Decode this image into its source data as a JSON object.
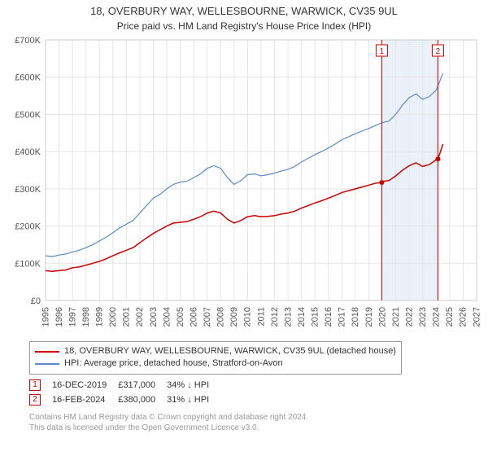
{
  "title": "18, OVERBURY WAY, WELLESBOURNE, WARWICK, CV35 9UL",
  "subtitle": "Price paid vs. HM Land Registry's House Price Index (HPI)",
  "chart": {
    "type": "line",
    "background_color": "#ffffff",
    "plot_border_color": "#cccccc",
    "grid_color": "#e5e5e5",
    "font_family": "Arial",
    "axis_label_color": "#555555",
    "x": {
      "min": 1995,
      "max": 2027,
      "ticks": [
        1995,
        1996,
        1997,
        1998,
        1999,
        2000,
        2001,
        2002,
        2003,
        2004,
        2005,
        2006,
        2007,
        2008,
        2009,
        2010,
        2011,
        2012,
        2013,
        2014,
        2015,
        2016,
        2017,
        2018,
        2019,
        2020,
        2021,
        2022,
        2023,
        2024,
        2025,
        2026,
        2027
      ],
      "tick_fontsize": 11
    },
    "y": {
      "min": 0,
      "max": 700000,
      "tick_step": 100000,
      "labels": [
        "£0",
        "£100K",
        "£200K",
        "£300K",
        "£400K",
        "£500K",
        "£600K",
        "£700K"
      ],
      "tick_fontsize": 11
    },
    "shaded_region": {
      "x_min": 2019.96,
      "x_max": 2024.13,
      "fill": "rgba(173,200,230,0.25)"
    },
    "markers": [
      {
        "id": "1",
        "x": 2019.96,
        "y": 317000,
        "badge_border": "#cc0000",
        "badge_text": "#cc0000",
        "line_color": "#cc0000"
      },
      {
        "id": "2",
        "x": 2024.13,
        "y": 380000,
        "badge_border": "#cc0000",
        "badge_text": "#cc0000",
        "line_color": "#cc0000"
      }
    ],
    "series": [
      {
        "name": "property",
        "label": "18, OVERBURY WAY, WELLESBOURNE, WARWICK, CV35 9UL (detached house)",
        "color": "#cc0000",
        "line_width": 1.5,
        "points": [
          [
            1995,
            80000
          ],
          [
            1995.5,
            78000
          ],
          [
            1996,
            80000
          ],
          [
            1996.5,
            82000
          ],
          [
            1997,
            88000
          ],
          [
            1997.5,
            90000
          ],
          [
            1998,
            95000
          ],
          [
            1998.5,
            100000
          ],
          [
            1999,
            105000
          ],
          [
            1999.5,
            112000
          ],
          [
            2000,
            120000
          ],
          [
            2000.5,
            128000
          ],
          [
            2001,
            135000
          ],
          [
            2001.5,
            142000
          ],
          [
            2002,
            155000
          ],
          [
            2002.5,
            168000
          ],
          [
            2003,
            180000
          ],
          [
            2003.5,
            190000
          ],
          [
            2004,
            200000
          ],
          [
            2004.5,
            208000
          ],
          [
            2005,
            210000
          ],
          [
            2005.5,
            212000
          ],
          [
            2006,
            218000
          ],
          [
            2006.5,
            225000
          ],
          [
            2007,
            235000
          ],
          [
            2007.5,
            240000
          ],
          [
            2008,
            235000
          ],
          [
            2008.5,
            218000
          ],
          [
            2009,
            208000
          ],
          [
            2009.5,
            215000
          ],
          [
            2010,
            225000
          ],
          [
            2010.5,
            228000
          ],
          [
            2011,
            225000
          ],
          [
            2011.5,
            226000
          ],
          [
            2012,
            228000
          ],
          [
            2012.5,
            232000
          ],
          [
            2013,
            235000
          ],
          [
            2013.5,
            240000
          ],
          [
            2014,
            248000
          ],
          [
            2014.5,
            255000
          ],
          [
            2015,
            262000
          ],
          [
            2015.5,
            268000
          ],
          [
            2016,
            275000
          ],
          [
            2016.5,
            282000
          ],
          [
            2017,
            290000
          ],
          [
            2017.5,
            295000
          ],
          [
            2018,
            300000
          ],
          [
            2018.5,
            305000
          ],
          [
            2019,
            310000
          ],
          [
            2019.5,
            315000
          ],
          [
            2019.96,
            317000
          ],
          [
            2020,
            320000
          ],
          [
            2020.5,
            322000
          ],
          [
            2021,
            335000
          ],
          [
            2021.5,
            350000
          ],
          [
            2022,
            362000
          ],
          [
            2022.5,
            370000
          ],
          [
            2023,
            360000
          ],
          [
            2023.5,
            365000
          ],
          [
            2024,
            378000
          ],
          [
            2024.13,
            380000
          ],
          [
            2024.5,
            420000
          ]
        ]
      },
      {
        "name": "hpi",
        "label": "HPI: Average price, detached house, Stratford-on-Avon",
        "color": "#5b8bc9",
        "line_width": 1.2,
        "points": [
          [
            1995,
            120000
          ],
          [
            1995.5,
            118000
          ],
          [
            1996,
            122000
          ],
          [
            1996.5,
            125000
          ],
          [
            1997,
            130000
          ],
          [
            1997.5,
            135000
          ],
          [
            1998,
            142000
          ],
          [
            1998.5,
            150000
          ],
          [
            1999,
            160000
          ],
          [
            1999.5,
            170000
          ],
          [
            2000,
            182000
          ],
          [
            2000.5,
            195000
          ],
          [
            2001,
            205000
          ],
          [
            2001.5,
            215000
          ],
          [
            2002,
            235000
          ],
          [
            2002.5,
            255000
          ],
          [
            2003,
            275000
          ],
          [
            2003.5,
            285000
          ],
          [
            2004,
            300000
          ],
          [
            2004.5,
            312000
          ],
          [
            2005,
            318000
          ],
          [
            2005.5,
            320000
          ],
          [
            2006,
            330000
          ],
          [
            2006.5,
            340000
          ],
          [
            2007,
            355000
          ],
          [
            2007.5,
            362000
          ],
          [
            2008,
            355000
          ],
          [
            2008.5,
            330000
          ],
          [
            2009,
            312000
          ],
          [
            2009.5,
            322000
          ],
          [
            2010,
            338000
          ],
          [
            2010.5,
            340000
          ],
          [
            2011,
            335000
          ],
          [
            2011.5,
            338000
          ],
          [
            2012,
            342000
          ],
          [
            2012.5,
            348000
          ],
          [
            2013,
            352000
          ],
          [
            2013.5,
            360000
          ],
          [
            2014,
            372000
          ],
          [
            2014.5,
            382000
          ],
          [
            2015,
            392000
          ],
          [
            2015.5,
            400000
          ],
          [
            2016,
            410000
          ],
          [
            2016.5,
            420000
          ],
          [
            2017,
            432000
          ],
          [
            2017.5,
            440000
          ],
          [
            2018,
            448000
          ],
          [
            2018.5,
            455000
          ],
          [
            2019,
            462000
          ],
          [
            2019.5,
            470000
          ],
          [
            2020,
            478000
          ],
          [
            2020.5,
            482000
          ],
          [
            2021,
            500000
          ],
          [
            2021.5,
            525000
          ],
          [
            2022,
            545000
          ],
          [
            2022.5,
            555000
          ],
          [
            2023,
            540000
          ],
          [
            2023.5,
            548000
          ],
          [
            2024,
            565000
          ],
          [
            2024.5,
            610000
          ]
        ]
      }
    ]
  },
  "legend": {
    "border_color": "#999999",
    "rows": [
      {
        "swatch_color": "#cc0000",
        "label": "18, OVERBURY WAY, WELLESBOURNE, WARWICK, CV35 9UL (detached house)"
      },
      {
        "swatch_color": "#5b8bc9",
        "label": "HPI: Average price, detached house, Stratford-on-Avon"
      }
    ]
  },
  "markers_table": {
    "rows": [
      {
        "badge": "1",
        "badge_color": "#cc0000",
        "date": "16-DEC-2019",
        "price": "£317,000",
        "delta": "34% ↓ HPI"
      },
      {
        "badge": "2",
        "badge_color": "#cc0000",
        "date": "16-FEB-2024",
        "price": "£380,000",
        "delta": "31% ↓ HPI"
      }
    ]
  },
  "footnote": {
    "line1": "Contains HM Land Registry data © Crown copyright and database right 2024.",
    "line2": "This data is licensed under the Open Government Licence v3.0."
  }
}
